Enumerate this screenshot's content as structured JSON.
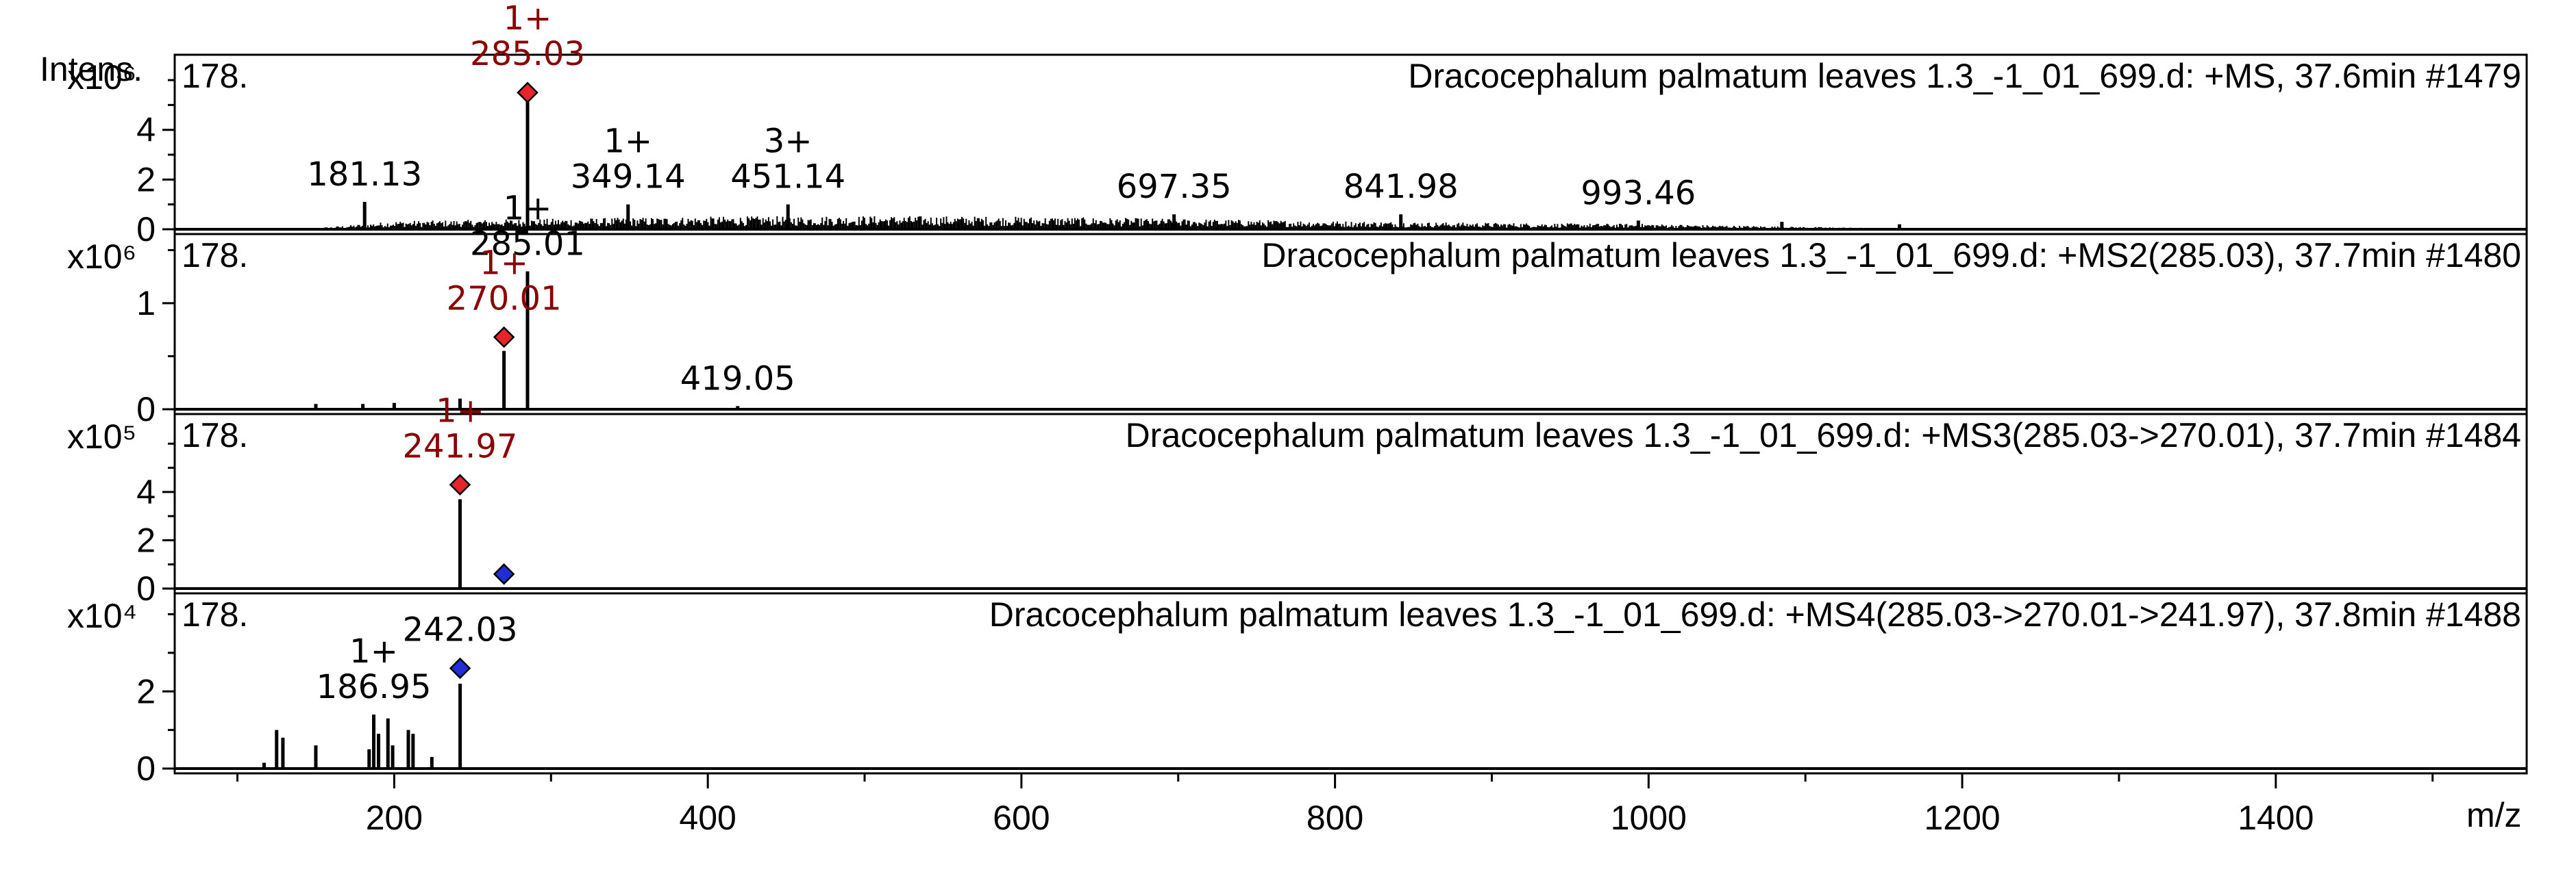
{
  "chart_data": {
    "type": "line",
    "y_axis_label": "Intens.",
    "x_axis_label": "m/z",
    "xlim": [
      60,
      1560
    ],
    "x_ticks": [
      200,
      400,
      600,
      800,
      1000,
      1200,
      1400
    ],
    "x_tick_labels": [
      "200",
      "400",
      "600",
      "800",
      "1000",
      "1200",
      "1400"
    ],
    "colors": {
      "line": "#000000",
      "precursor": "#e8242b",
      "precursor_label": "#8b0000",
      "fragment": "#1f2ed6"
    },
    "panels": [
      {
        "title": "Dracocephalum palmatum leaves 1.3_-1_01_699.d: +MS, 37.6min #1479",
        "corner_label": "178.",
        "scale_label": "x10⁶",
        "ylim": [
          0,
          6.8
        ],
        "y_ticks": [
          0,
          2,
          4
        ],
        "y_tick_labels": [
          "0",
          "2",
          "4"
        ],
        "noise": {
          "start": 140,
          "end": 1200,
          "level": 0.45
        },
        "peaks": [
          {
            "mz": 181.13,
            "intensity": 1.1
          },
          {
            "mz": 285.03,
            "intensity": 5.5
          },
          {
            "mz": 349.14,
            "intensity": 1.0
          },
          {
            "mz": 451.14,
            "intensity": 1.0
          },
          {
            "mz": 697.35,
            "intensity": 0.6
          },
          {
            "mz": 841.98,
            "intensity": 0.6
          },
          {
            "mz": 993.46,
            "intensity": 0.35
          },
          {
            "mz": 1085,
            "intensity": 0.3
          },
          {
            "mz": 1160,
            "intensity": 0.2
          }
        ],
        "labels": [
          {
            "mz": 181.13,
            "charge": "",
            "text": "181.13",
            "color": "black"
          },
          {
            "mz": 285.03,
            "charge": "1+",
            "text": "285.03",
            "color": "red"
          },
          {
            "mz": 349.14,
            "charge": "1+",
            "text": "349.14",
            "color": "black"
          },
          {
            "mz": 451.14,
            "charge": "3+",
            "text": "451.14",
            "color": "black"
          },
          {
            "mz": 697.35,
            "charge": "",
            "text": "697.35",
            "color": "black"
          },
          {
            "mz": 841.98,
            "charge": "",
            "text": "841.98",
            "color": "black"
          },
          {
            "mz": 993.46,
            "charge": "",
            "text": "993.46",
            "color": "black"
          }
        ],
        "markers": [
          {
            "mz": 285.03,
            "intensity": 5.5,
            "color": "red"
          }
        ]
      },
      {
        "title": "Dracocephalum palmatum leaves 1.3_-1_01_699.d: +MS2(285.03), 37.7min #1480",
        "corner_label": "178.",
        "scale_label": "x10⁶",
        "ylim": [
          0,
          1.6
        ],
        "y_ticks": [
          0,
          1
        ],
        "y_tick_labels": [
          "0",
          "1"
        ],
        "noise": {
          "start": 150,
          "end": 270,
          "level": 0.05
        },
        "peaks": [
          {
            "mz": 150.0,
            "intensity": 0.05
          },
          {
            "mz": 180.0,
            "intensity": 0.05
          },
          {
            "mz": 200.0,
            "intensity": 0.06
          },
          {
            "mz": 241.97,
            "intensity": 0.1
          },
          {
            "mz": 270.01,
            "intensity": 0.55
          },
          {
            "mz": 285.01,
            "intensity": 1.3
          },
          {
            "mz": 419.05,
            "intensity": 0.03
          }
        ],
        "labels": [
          {
            "mz": 285.01,
            "charge": "1+",
            "text": "285.01",
            "color": "black"
          },
          {
            "mz": 270.01,
            "charge": "1+",
            "text": "270.01",
            "color": "red"
          },
          {
            "mz": 419.05,
            "charge": "",
            "text": "419.05",
            "color": "black"
          }
        ],
        "markers": [
          {
            "mz": 270.01,
            "intensity": 0.68,
            "color": "red"
          }
        ]
      },
      {
        "title": "Dracocephalum palmatum leaves 1.3_-1_01_699.d: +MS3(285.03->270.01), 37.7min #1484",
        "corner_label": "178.",
        "scale_label": "x10⁵",
        "ylim": [
          0,
          7.0
        ],
        "y_ticks": [
          0,
          2,
          4
        ],
        "y_tick_labels": [
          "0",
          "2",
          "4"
        ],
        "noise": {
          "start": 200,
          "end": 270,
          "level": 0.0
        },
        "peaks": [
          {
            "mz": 241.97,
            "intensity": 3.7
          },
          {
            "mz": 270.01,
            "intensity": 0.05
          }
        ],
        "labels": [
          {
            "mz": 241.97,
            "charge": "1+",
            "text": "241.97",
            "color": "red"
          }
        ],
        "markers": [
          {
            "mz": 241.97,
            "intensity": 4.3,
            "color": "red"
          },
          {
            "mz": 270.01,
            "intensity": 0.6,
            "color": "blue"
          }
        ]
      },
      {
        "title": "Dracocephalum palmatum leaves 1.3_-1_01_699.d: +MS4(285.03->270.01->241.97), 37.8min #1488",
        "corner_label": "178.",
        "scale_label": "x10⁴",
        "ylim": [
          0,
          4.4
        ],
        "y_ticks": [
          0,
          2
        ],
        "y_tick_labels": [
          "0",
          "2"
        ],
        "noise": {
          "start": 115,
          "end": 240,
          "level": 0.0
        },
        "peaks": [
          {
            "mz": 117.0,
            "intensity": 0.15
          },
          {
            "mz": 125.0,
            "intensity": 1.0
          },
          {
            "mz": 129.0,
            "intensity": 0.8
          },
          {
            "mz": 150.0,
            "intensity": 0.6
          },
          {
            "mz": 184.0,
            "intensity": 0.5
          },
          {
            "mz": 186.95,
            "intensity": 1.4
          },
          {
            "mz": 190.0,
            "intensity": 0.9
          },
          {
            "mz": 196.0,
            "intensity": 1.3
          },
          {
            "mz": 199.0,
            "intensity": 0.6
          },
          {
            "mz": 209.0,
            "intensity": 1.0
          },
          {
            "mz": 212.0,
            "intensity": 0.9
          },
          {
            "mz": 224.0,
            "intensity": 0.3
          },
          {
            "mz": 242.03,
            "intensity": 2.2
          }
        ],
        "labels": [
          {
            "mz": 186.95,
            "charge": "1+",
            "text": "186.95",
            "color": "black"
          },
          {
            "mz": 242.03,
            "charge": "",
            "text": "242.03",
            "color": "black"
          }
        ],
        "markers": [
          {
            "mz": 242.03,
            "intensity": 2.6,
            "color": "blue"
          }
        ]
      }
    ]
  }
}
